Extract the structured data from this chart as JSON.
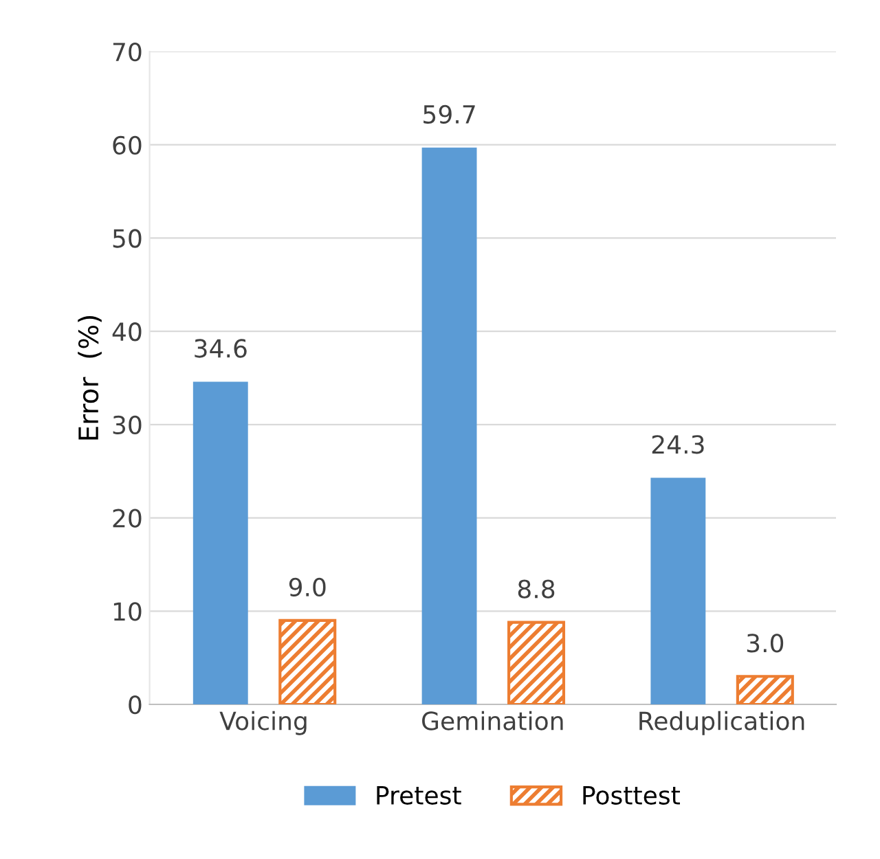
{
  "chart_data": {
    "type": "bar",
    "ylabel": "Error  (%)",
    "categories": [
      "Voicing",
      "Gemination",
      "Reduplication"
    ],
    "series": [
      {
        "name": "Pretest",
        "color": "#5b9bd5",
        "values": [
          34.6,
          59.7,
          24.3
        ],
        "value_labels": [
          "34.6",
          "59.7",
          "24.3"
        ]
      },
      {
        "name": "Posttest",
        "color": "#ed7d31",
        "values": [
          9.0,
          8.8,
          3.0
        ],
        "value_labels": [
          "9.0",
          "8.8",
          "3.0"
        ]
      }
    ],
    "ylim": [
      0,
      70
    ],
    "yticks": [
      0,
      10,
      20,
      30,
      40,
      50,
      60,
      70
    ],
    "grid": "y",
    "legend": "bottom"
  }
}
